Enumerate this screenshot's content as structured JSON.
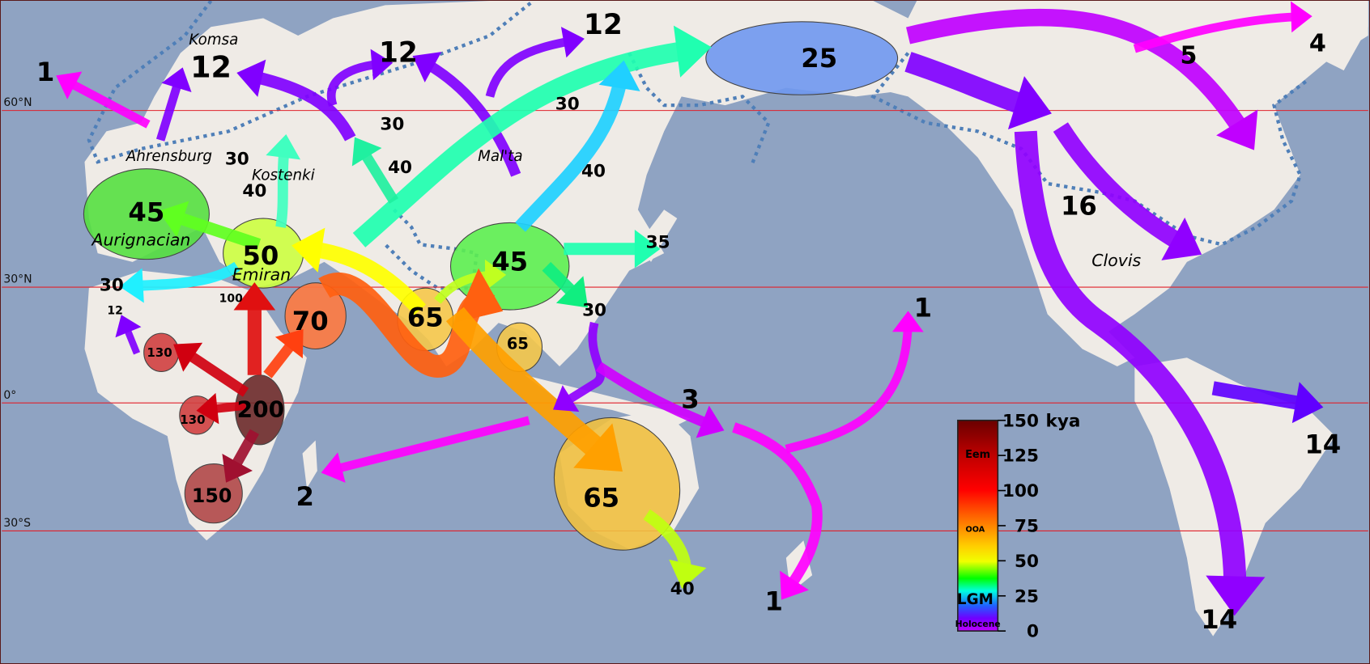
{
  "colors": {
    "ocean": "#8fa3c2",
    "land": "#efebe6",
    "latitude_line": "#e0202a",
    "ice_boundary": "#4f7fb8"
  },
  "latitudes": [
    "60°N",
    "30°N",
    "0°",
    "30°S"
  ],
  "sites": {
    "komsa": "Komsa",
    "ahrensburg": "Ahrensburg",
    "kostenki": "Kostenki",
    "malta": "Mal'ta",
    "aurignacian": "Aurignacian",
    "emiran": "Emiran",
    "clovis": "Clovis"
  },
  "nodes": {
    "aurignacian": "45",
    "emiran": "50",
    "east_asia": "45",
    "beringia": "25",
    "levant": "70",
    "arabia": "65",
    "se_asia": "65",
    "australia": "65",
    "east_africa": "200",
    "west_africa": "130",
    "central_africa": "130",
    "south_africa": "150"
  },
  "dates": {
    "iceland": "1",
    "scandinavia": "12",
    "north_russia": "12",
    "siberia_north": "12",
    "greenland": "5",
    "greenland_east": "4",
    "europe_30": "30",
    "europe_40": "40",
    "russia_30": "30",
    "russia_40": "40",
    "siberia_30": "30",
    "siberia_40": "40",
    "japan": "35",
    "taiwan": "30",
    "n_africa_30": "30",
    "n_africa_12": "12",
    "sinai": "100",
    "madagascar": "2",
    "melanesia": "3",
    "hawaii": "1",
    "new_zealand": "1",
    "tasmania": "40",
    "north_america": "16",
    "brazil": "14",
    "patagonia": "14"
  },
  "legend": {
    "unit": "kya",
    "ticks": [
      "150",
      "125",
      "100",
      "75",
      "50",
      "25",
      "0"
    ],
    "periods": [
      "Eem",
      "OOA",
      "LGM",
      "Holocene"
    ]
  }
}
